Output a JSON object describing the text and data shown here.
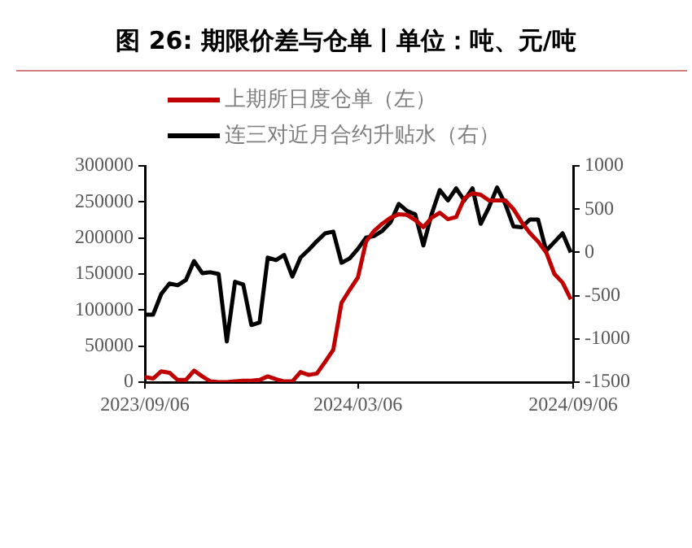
{
  "chart_data": {
    "type": "line",
    "title": "图  26: 期限价差与仓单丨单位：吨、元/吨",
    "x": [
      "2023-09-06",
      "2023-09-13",
      "2023-09-20",
      "2023-09-27",
      "2023-10-04",
      "2023-10-11",
      "2023-10-18",
      "2023-10-25",
      "2023-11-01",
      "2023-11-08",
      "2023-11-15",
      "2023-11-22",
      "2023-11-29",
      "2023-12-06",
      "2023-12-13",
      "2023-12-20",
      "2023-12-27",
      "2024-01-03",
      "2024-01-10",
      "2024-01-17",
      "2024-01-24",
      "2024-01-31",
      "2024-02-07",
      "2024-02-14",
      "2024-02-21",
      "2024-02-28",
      "2024-03-06",
      "2024-03-13",
      "2024-03-20",
      "2024-03-27",
      "2024-04-03",
      "2024-04-10",
      "2024-04-17",
      "2024-04-24",
      "2024-05-01",
      "2024-05-08",
      "2024-05-15",
      "2024-05-22",
      "2024-05-29",
      "2024-06-05",
      "2024-06-12",
      "2024-06-19",
      "2024-06-26",
      "2024-07-03",
      "2024-07-10",
      "2024-07-17",
      "2024-07-24",
      "2024-07-31",
      "2024-08-07",
      "2024-08-14",
      "2024-08-21",
      "2024-08-28",
      "2024-09-04"
    ],
    "series": [
      {
        "name": "上期所日度仓单（左）",
        "color": "#c00000",
        "values": [
          7000,
          5000,
          15000,
          13000,
          3000,
          3000,
          16000,
          8000,
          1000,
          0,
          0,
          1000,
          2000,
          2000,
          3000,
          8000,
          4000,
          1000,
          1000,
          14000,
          10000,
          12000,
          28000,
          45000,
          110000,
          128000,
          145000,
          195000,
          210000,
          220000,
          228000,
          233000,
          232000,
          225000,
          215000,
          228000,
          235000,
          226000,
          229000,
          255000,
          262000,
          260000,
          252000,
          252000,
          252000,
          240000,
          222000,
          207000,
          195000,
          180000,
          150000,
          138000,
          115000
        ]
      },
      {
        "name": "连三对近月合约升贴水（右）",
        "color": "#000000",
        "axis": "y2",
        "values": [
          -720,
          -720,
          -480,
          -360,
          -380,
          -320,
          -100,
          -240,
          -230,
          -250,
          -1030,
          -340,
          -370,
          -840,
          -810,
          -60,
          -90,
          -30,
          -280,
          -60,
          30,
          130,
          220,
          240,
          -120,
          -70,
          40,
          170,
          190,
          250,
          350,
          560,
          480,
          440,
          80,
          440,
          720,
          600,
          740,
          600,
          740,
          330,
          520,
          750,
          560,
          300,
          290,
          380,
          380,
          20,
          120,
          220,
          0
        ]
      }
    ],
    "xlim": [
      "2023-09-06",
      "2024-09-06"
    ],
    "xticks": [
      {
        "value": "2023-09-06",
        "label": "2023/09/06"
      },
      {
        "value": "2024-03-06",
        "label": "2024/03/06"
      },
      {
        "value": "2024-09-06",
        "label": "2024/09/06"
      }
    ],
    "ylim": [
      0,
      300000
    ],
    "yticks": [
      0,
      50000,
      100000,
      150000,
      200000,
      250000,
      300000
    ],
    "y2lim": [
      -1500,
      1000
    ],
    "y2ticks": [
      -1500,
      -1000,
      -500,
      0,
      500,
      1000
    ],
    "grid": false,
    "legend": "top",
    "marker": "none",
    "line_style": "solid"
  }
}
